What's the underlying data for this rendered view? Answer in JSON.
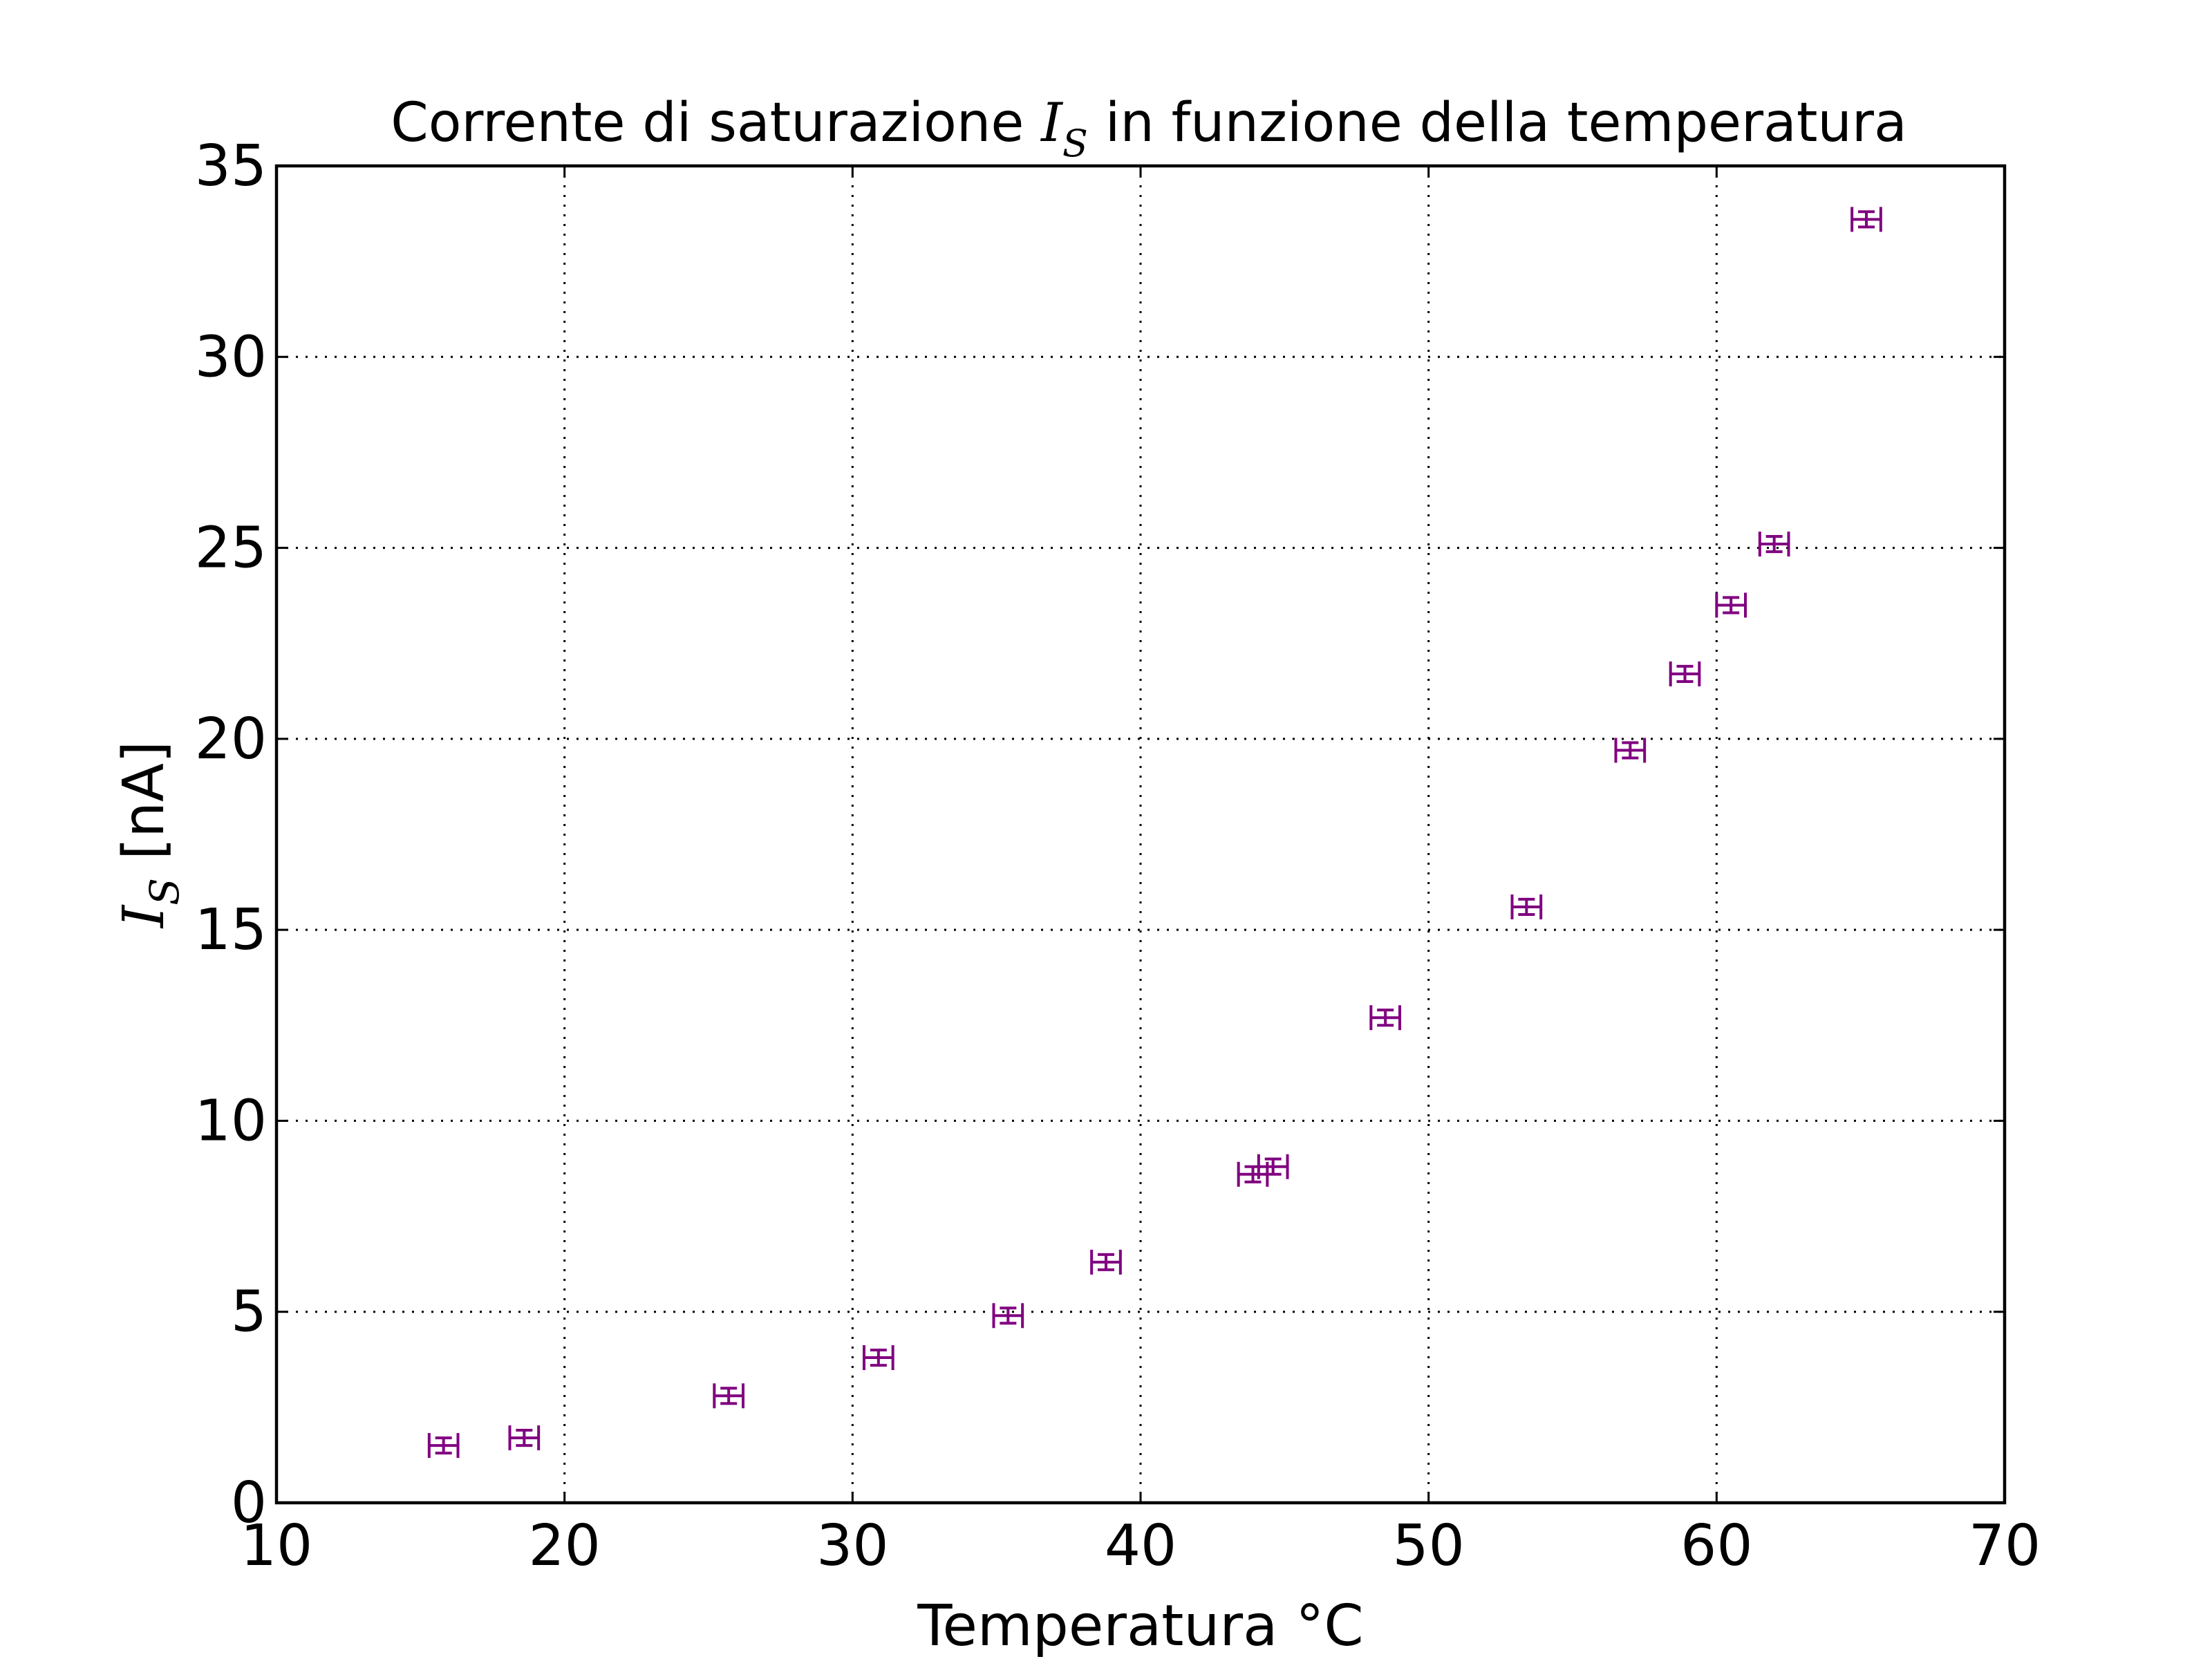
{
  "chart_data": {
    "type": "scatter",
    "title_prefix": "Corrente di saturazione ",
    "title_math_main": "I",
    "title_math_sub": "S",
    "title_suffix": " in funzione della temperatura",
    "xlabel": "Temperatura °C",
    "ylabel_math_main": "I",
    "ylabel_math_sub": "S",
    "ylabel_suffix": " [nA]",
    "xlim": [
      10,
      70
    ],
    "ylim": [
      0,
      35
    ],
    "xticks": [
      10,
      20,
      30,
      40,
      50,
      60,
      70
    ],
    "yticks": [
      0,
      5,
      10,
      15,
      20,
      25,
      30,
      35
    ],
    "xtick_labels": [
      "10",
      "20",
      "30",
      "40",
      "50",
      "60",
      "70"
    ],
    "ytick_labels": [
      "0",
      "5",
      "10",
      "15",
      "20",
      "25",
      "30",
      "35"
    ],
    "grid": true,
    "marker_color": "#800080",
    "points": [
      {
        "x": 15.8,
        "y": 1.5,
        "xerr": 0.5,
        "yerr": 0.2
      },
      {
        "x": 18.6,
        "y": 1.7,
        "xerr": 0.5,
        "yerr": 0.2
      },
      {
        "x": 25.7,
        "y": 2.8,
        "xerr": 0.5,
        "yerr": 0.2
      },
      {
        "x": 30.9,
        "y": 3.8,
        "xerr": 0.5,
        "yerr": 0.2
      },
      {
        "x": 35.4,
        "y": 4.9,
        "xerr": 0.5,
        "yerr": 0.2
      },
      {
        "x": 38.8,
        "y": 6.3,
        "xerr": 0.5,
        "yerr": 0.2
      },
      {
        "x": 43.9,
        "y": 8.6,
        "xerr": 0.5,
        "yerr": 0.2
      },
      {
        "x": 44.6,
        "y": 8.8,
        "xerr": 0.5,
        "yerr": 0.2
      },
      {
        "x": 48.5,
        "y": 12.7,
        "xerr": 0.5,
        "yerr": 0.2
      },
      {
        "x": 53.4,
        "y": 15.6,
        "xerr": 0.5,
        "yerr": 0.2
      },
      {
        "x": 57.0,
        "y": 19.7,
        "xerr": 0.5,
        "yerr": 0.2
      },
      {
        "x": 58.9,
        "y": 21.7,
        "xerr": 0.5,
        "yerr": 0.2
      },
      {
        "x": 60.5,
        "y": 23.5,
        "xerr": 0.5,
        "yerr": 0.2
      },
      {
        "x": 62.0,
        "y": 25.1,
        "xerr": 0.5,
        "yerr": 0.2
      },
      {
        "x": 65.2,
        "y": 33.6,
        "xerr": 0.5,
        "yerr": 0.2
      }
    ]
  }
}
